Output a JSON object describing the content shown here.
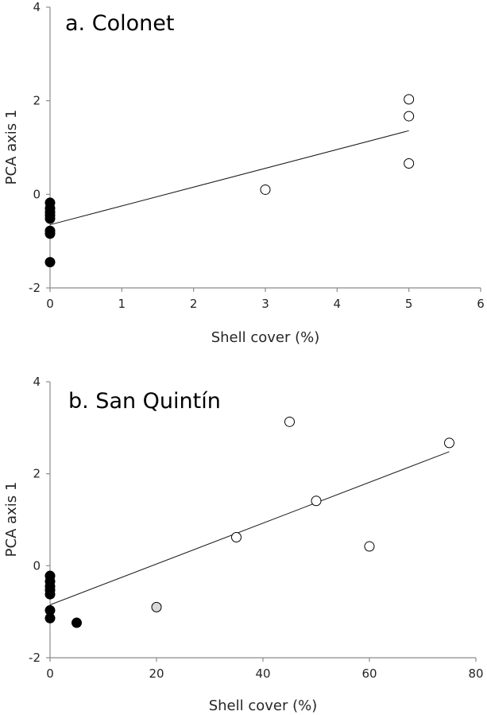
{
  "chart_data": [
    {
      "type": "scatter",
      "title": "a. Colonet",
      "xlabel": "Shell cover (%)",
      "ylabel": "PCA axis 1",
      "xlim": [
        0,
        6
      ],
      "ylim": [
        -2,
        4
      ],
      "xticks": [
        "0",
        "1",
        "2",
        "3",
        "4",
        "5",
        "6"
      ],
      "yticks": [
        "-2",
        "0",
        "2",
        "4"
      ],
      "grid": false,
      "series": [
        {
          "marker": "filled-circle",
          "color": "#000000",
          "points": [
            [
              0,
              -0.18
            ],
            [
              0,
              -0.3
            ],
            [
              0,
              -0.38
            ],
            [
              0,
              -0.45
            ],
            [
              0,
              -0.52
            ],
            [
              0,
              -0.78
            ],
            [
              0,
              -0.84
            ],
            [
              0,
              -1.45
            ]
          ]
        },
        {
          "marker": "open-circle",
          "color": "#ffffff",
          "points": [
            [
              3,
              0.1
            ],
            [
              5,
              2.03
            ],
            [
              5,
              1.67
            ],
            [
              5,
              0.66
            ]
          ]
        }
      ],
      "trendline": {
        "x": [
          0,
          5
        ],
        "y": [
          -0.65,
          1.36
        ]
      }
    },
    {
      "type": "scatter",
      "title": "b. San Quintín",
      "xlabel": "Shell cover (%)",
      "ylabel": "PCA axis 1",
      "xlim": [
        0,
        80
      ],
      "ylim": [
        -2,
        4
      ],
      "xticks": [
        "0",
        "20",
        "40",
        "60",
        "80"
      ],
      "yticks": [
        "-2",
        "0",
        "2",
        "4"
      ],
      "grid": false,
      "series": [
        {
          "marker": "filled-circle",
          "color": "#000000",
          "points": [
            [
              0,
              -0.22
            ],
            [
              0,
              -0.34
            ],
            [
              0,
              -0.45
            ],
            [
              0,
              -0.53
            ],
            [
              0,
              -0.62
            ],
            [
              0,
              -0.97
            ],
            [
              0,
              -1.14
            ],
            [
              5,
              -1.24
            ]
          ]
        },
        {
          "marker": "grey-circle",
          "color": "#d9d9d9",
          "points": [
            [
              20,
              -0.9
            ]
          ]
        },
        {
          "marker": "open-circle",
          "color": "#ffffff",
          "points": [
            [
              35,
              0.62
            ],
            [
              45,
              3.13
            ],
            [
              50,
              1.41
            ],
            [
              60,
              0.42
            ],
            [
              75,
              2.67
            ]
          ]
        }
      ],
      "trendline": {
        "x": [
          0,
          75
        ],
        "y": [
          -0.85,
          2.48
        ]
      }
    }
  ]
}
